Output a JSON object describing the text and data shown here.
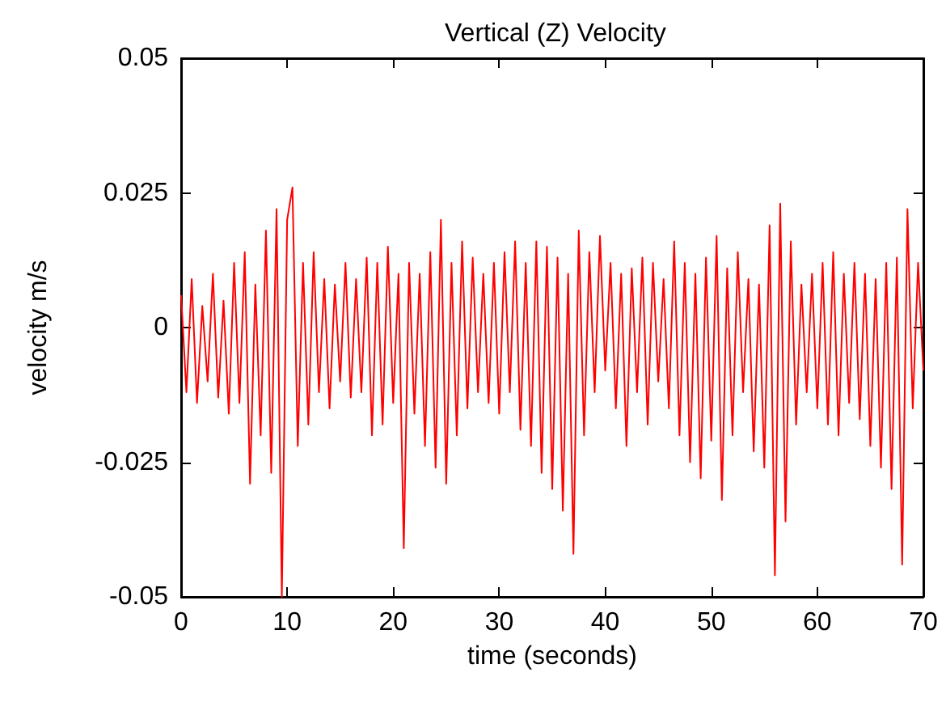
{
  "chart_data": {
    "type": "line",
    "title": "Vertical (Z) Velocity",
    "xlabel": "time (seconds)",
    "ylabel": "velocity m/s",
    "x": [
      0,
      0.5,
      1,
      1.5,
      2,
      2.5,
      3,
      3.5,
      4,
      4.5,
      5,
      5.5,
      6,
      6.5,
      7,
      7.5,
      8,
      8.5,
      9,
      9.5,
      10,
      10.5,
      11,
      11.5,
      12,
      12.5,
      13,
      13.5,
      14,
      14.5,
      15,
      15.5,
      16,
      16.5,
      17,
      17.5,
      18,
      18.5,
      19,
      19.5,
      20,
      20.5,
      21,
      21.5,
      22,
      22.5,
      23,
      23.5,
      24,
      24.5,
      25,
      25.5,
      26,
      26.5,
      27,
      27.5,
      28,
      28.5,
      29,
      29.5,
      30,
      30.5,
      31,
      31.5,
      32,
      32.5,
      33,
      33.5,
      34,
      34.5,
      35,
      35.5,
      36,
      36.5,
      37,
      37.5,
      38,
      38.5,
      39,
      39.5,
      40,
      40.5,
      41,
      41.5,
      42,
      42.5,
      43,
      43.5,
      44,
      44.5,
      45,
      45.5,
      46,
      46.5,
      47,
      47.5,
      48,
      48.5,
      49,
      49.5,
      50,
      50.5,
      51,
      51.5,
      52,
      52.5,
      53,
      53.5,
      54,
      54.5,
      55,
      55.5,
      56,
      56.5,
      57,
      57.5,
      58,
      58.5,
      59,
      59.5,
      60,
      60.5,
      61,
      61.5,
      62,
      62.5,
      63,
      63.5,
      64,
      64.5,
      65,
      65.5,
      66,
      66.5,
      67,
      67.5,
      68,
      68.5,
      69,
      69.5,
      70
    ],
    "series": [
      {
        "color": "#ff0000",
        "values": [
          0.006,
          -0.012,
          0.009,
          -0.014,
          0.004,
          -0.01,
          0.01,
          -0.013,
          0.005,
          -0.016,
          0.012,
          -0.014,
          0.014,
          -0.029,
          0.008,
          -0.02,
          0.018,
          -0.027,
          0.022,
          -0.05,
          0.02,
          0.026,
          -0.022,
          0.012,
          -0.018,
          0.014,
          -0.012,
          0.009,
          -0.015,
          0.008,
          -0.01,
          0.012,
          -0.013,
          0.009,
          -0.012,
          0.013,
          -0.02,
          0.012,
          -0.018,
          0.015,
          -0.014,
          0.01,
          -0.041,
          0.012,
          -0.016,
          0.01,
          -0.022,
          0.014,
          -0.026,
          0.02,
          -0.029,
          0.012,
          -0.02,
          0.016,
          -0.015,
          0.013,
          -0.012,
          0.01,
          -0.014,
          0.012,
          -0.016,
          0.014,
          -0.012,
          0.016,
          -0.019,
          0.012,
          -0.022,
          0.016,
          -0.027,
          0.015,
          -0.03,
          0.013,
          -0.034,
          0.01,
          -0.042,
          0.018,
          -0.02,
          0.014,
          -0.012,
          0.017,
          -0.008,
          0.012,
          -0.015,
          0.01,
          -0.022,
          0.011,
          -0.012,
          0.013,
          -0.018,
          0.012,
          -0.01,
          0.009,
          -0.015,
          0.016,
          -0.02,
          0.012,
          -0.025,
          0.01,
          -0.028,
          0.013,
          -0.021,
          0.017,
          -0.032,
          0.011,
          -0.02,
          0.014,
          -0.012,
          0.009,
          -0.023,
          0.008,
          -0.026,
          0.019,
          -0.046,
          0.023,
          -0.036,
          0.016,
          -0.018,
          0.008,
          -0.012,
          0.01,
          -0.015,
          0.012,
          -0.018,
          0.014,
          -0.02,
          0.01,
          -0.014,
          0.012,
          -0.017,
          0.01,
          -0.022,
          0.009,
          -0.026,
          0.012,
          -0.03,
          0.013,
          -0.044,
          0.022,
          -0.015,
          0.012,
          -0.008
        ]
      }
    ],
    "xlim": [
      0,
      70
    ],
    "xticks": [
      0,
      10,
      20,
      30,
      40,
      50,
      60,
      70
    ],
    "ylim": [
      -0.05,
      0.05
    ],
    "yticks": [
      -0.05,
      {
        "value": -0.025,
        "label": "-0.025"
      },
      0,
      {
        "value": 0.025,
        "label": "0.025"
      },
      0.05
    ],
    "grid": false,
    "marker": "none",
    "line_style": "solid"
  }
}
